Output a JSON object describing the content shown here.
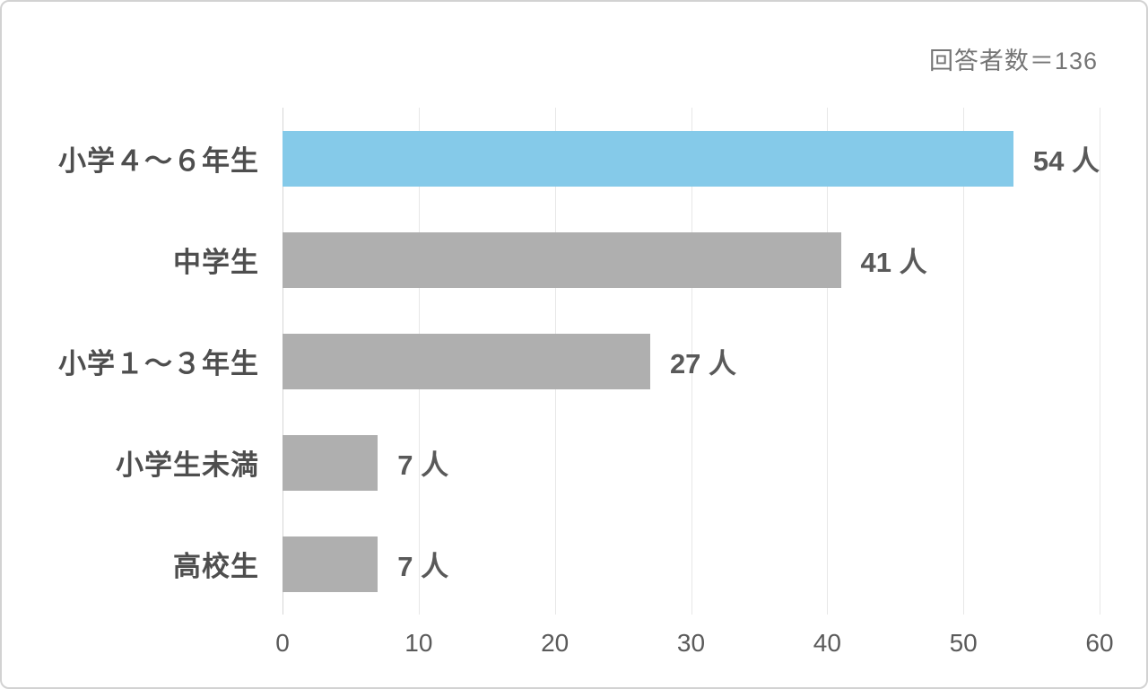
{
  "annotation": "回答者数＝136",
  "chart_data": {
    "type": "bar",
    "orientation": "horizontal",
    "title": "",
    "annotation": "回答者数＝136",
    "respondent_count": 136,
    "categories": [
      "小学４～６年生",
      "中学生",
      "小学１～３年生",
      "小学生未満",
      "高校生"
    ],
    "values": [
      54,
      41,
      27,
      7,
      7
    ],
    "data_labels": [
      "54 人",
      "41 人",
      "27 人",
      "7 人",
      "7 人"
    ],
    "xlabel": "",
    "ylabel": "",
    "xlim": [
      0,
      60
    ],
    "x_ticks": [
      0,
      10,
      20,
      30,
      40,
      50,
      60
    ],
    "grid": "vertical-gridlines-on",
    "legend": "none",
    "highlight_color": "#85CAE9",
    "default_color": "#AFAFAF",
    "bar_colors": [
      "#85CAE9",
      "#AFAFAF",
      "#AFAFAF",
      "#AFAFAF",
      "#AFAFAF"
    ]
  }
}
